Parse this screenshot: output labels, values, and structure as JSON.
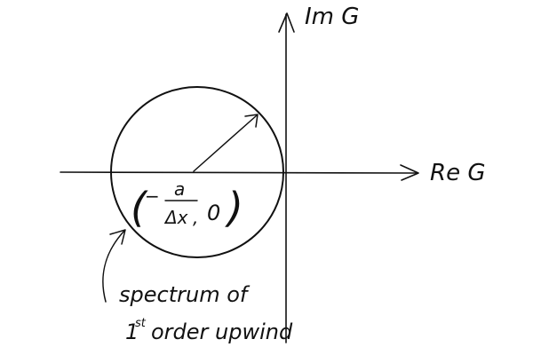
{
  "axes": {
    "imag_label": "Im G",
    "real_label": "Re G"
  },
  "center_label": {
    "open": "(",
    "minus": "−",
    "numerator": "a",
    "denominator": "Δx",
    "comma": ",",
    "zero": "0",
    "close": ")"
  },
  "annotation": {
    "line1": "spectrum of",
    "line2_prefix": "1",
    "line2_super": "st",
    "line2_rest": "order upwind"
  },
  "colors": {
    "ink": "#111111",
    "background": "#ffffff"
  }
}
